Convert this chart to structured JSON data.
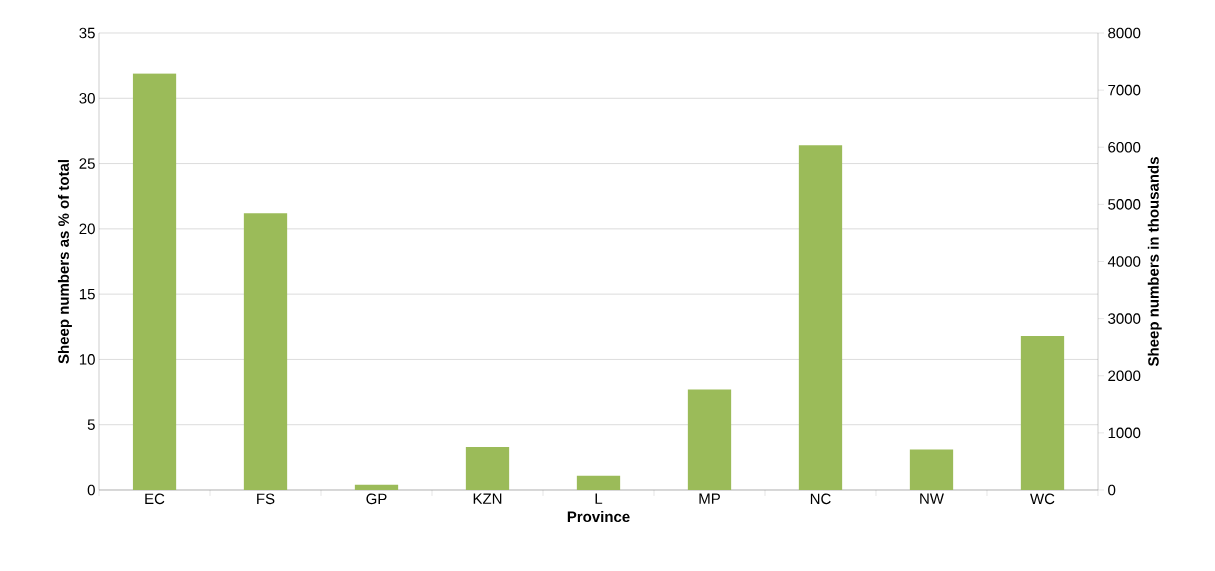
{
  "chart_data": {
    "type": "bar",
    "xlabel": "Province",
    "ylabel": "Sheep numbers as % of total",
    "y2label": "Sheep numbers in thousands",
    "categories": [
      "EC",
      "FS",
      "GP",
      "KZN",
      "L",
      "MP",
      "NC",
      "NW",
      "WC"
    ],
    "values": [
      31.9,
      21.2,
      0.4,
      3.3,
      1.1,
      7.7,
      26.4,
      3.1,
      11.8
    ],
    "color": "#9bbb59",
    "ylim": [
      0,
      35
    ],
    "yticks": [
      0,
      5,
      10,
      15,
      20,
      25,
      30,
      35
    ],
    "y2lim": [
      0,
      8000
    ],
    "y2ticks": [
      0,
      1000,
      2000,
      3000,
      4000,
      5000,
      6000,
      7000,
      8000
    ],
    "grid": "y"
  }
}
